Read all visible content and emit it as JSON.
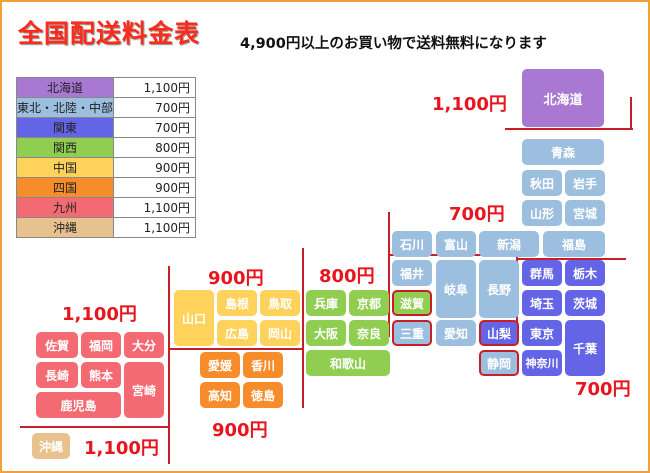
{
  "title": "全国配送料金表",
  "notice": "4,900円以上のお買い物で送料無料になります",
  "colors": {
    "hokkaido": "#a878d2",
    "tohoku": "#9cbfe0",
    "kanto": "#6464e6",
    "chubu": "#9cbfe0",
    "kansai": "#8fce50",
    "chugoku": "#ffd25c",
    "shikoku": "#f78c2a",
    "kyushu": "#f46a72",
    "okinawa": "#e8c28e",
    "highlight_border": "#c81e28",
    "price_text": "#e8141e"
  },
  "rates": [
    {
      "region": "北海道",
      "price": "1,100円",
      "color": "#a878d2"
    },
    {
      "region": "東北・北陸・中部",
      "price": "700円",
      "color": "#9cbfe0"
    },
    {
      "region": "関東",
      "price": "700円",
      "color": "#6464e6"
    },
    {
      "region": "関西",
      "price": "800円",
      "color": "#8fce50"
    },
    {
      "region": "中国",
      "price": "900円",
      "color": "#ffd25c"
    },
    {
      "region": "四国",
      "price": "900円",
      "color": "#f78c2a"
    },
    {
      "region": "九州",
      "price": "1,100円",
      "color": "#f46a72"
    },
    {
      "region": "沖縄",
      "price": "1,100円",
      "color": "#e8c28e"
    }
  ],
  "map_prices": {
    "hokkaido": "1,100円",
    "tohoku_chubu": "700円",
    "kansai": "800円",
    "chugoku": "900円",
    "shikoku": "900円",
    "kanto": "700円",
    "kyushu": "1,100円",
    "okinawa": "1,100円"
  },
  "prefectures": {
    "hokkaido": "北海道",
    "aomori": "青森",
    "akita": "秋田",
    "iwate": "岩手",
    "yamagata": "山形",
    "miyagi": "宮城",
    "fukushima": "福島",
    "ishikawa": "石川",
    "toyama": "富山",
    "niigata": "新潟",
    "fukui": "福井",
    "gifu": "岐阜",
    "nagano": "長野",
    "aichi": "愛知",
    "gunma": "群馬",
    "tochigi": "栃木",
    "saitama": "埼玉",
    "ibaraki": "茨城",
    "yamanashi": "山梨",
    "tokyo": "東京",
    "chiba": "千葉",
    "shizuoka": "静岡",
    "kanagawa": "神奈川",
    "hyogo": "兵庫",
    "kyoto": "京都",
    "shiga": "滋賀",
    "osaka": "大阪",
    "nara": "奈良",
    "mie": "三重",
    "wakayama": "和歌山",
    "yamaguchi": "山口",
    "shimane": "島根",
    "tottori": "鳥取",
    "hiroshima": "広島",
    "okayama": "岡山",
    "ehime": "愛媛",
    "kagawa": "香川",
    "kochi": "高知",
    "tokushima": "徳島",
    "saga": "佐賀",
    "fukuoka": "福岡",
    "oita": "大分",
    "nagasaki": "長崎",
    "kumamoto": "熊本",
    "miyazaki": "宮崎",
    "kagoshima": "鹿児島",
    "okinawa": "沖縄"
  }
}
